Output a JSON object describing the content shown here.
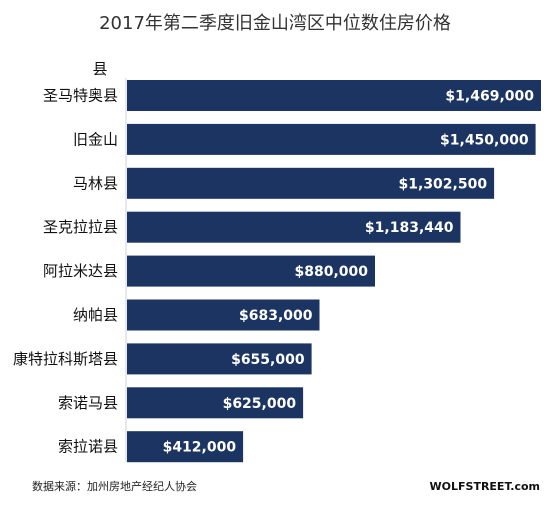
{
  "chart_data": {
    "type": "bar",
    "orientation": "horizontal",
    "title": "2017年第二季度旧金山湾区中位数住房价格",
    "y_axis_title": "县",
    "categories": [
      "圣马特奥县",
      "旧金山",
      "马林县",
      "圣克拉拉县",
      "阿拉米达县",
      "纳帕县",
      "康特拉科斯塔县",
      "索诺马县",
      "索拉诺县"
    ],
    "values": [
      1469000,
      1450000,
      1302500,
      1183440,
      880000,
      683000,
      655000,
      625000,
      412000
    ],
    "value_labels": [
      "$1,469,000",
      "$1,450,000",
      "$1,302,500",
      "$1,183,440",
      "$880,000",
      "$683,000",
      "$655,000",
      "$625,000",
      "$412,000"
    ],
    "xlim": [
      0,
      1469000
    ],
    "grid": false,
    "bar_color": "#1b3461",
    "label_color": "#ffffff"
  },
  "source": "数据来源：加州房地产经纪人协会",
  "watermark": "WOLFSTREET.com"
}
